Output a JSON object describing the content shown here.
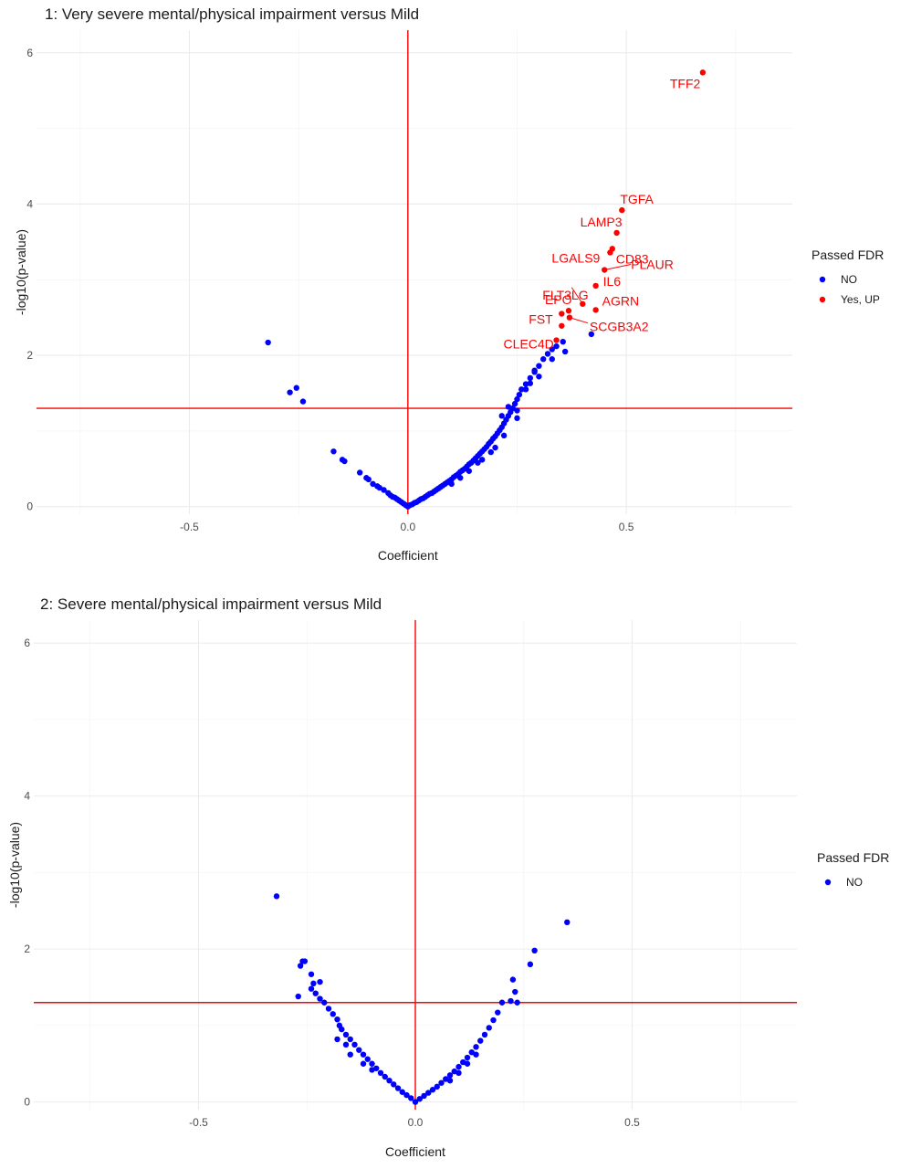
{
  "chart_data": [
    {
      "type": "scatter",
      "title": "1: Very severe mental/physical impairment versus Mild",
      "xlabel": "Coefficient",
      "ylabel": "-log10(p-value)",
      "xticks": [
        -0.5,
        0.0,
        0.5
      ],
      "yticks": [
        0,
        2,
        4,
        6
      ],
      "xlim": [
        -0.85,
        0.88
      ],
      "ylim": [
        -0.1,
        6.3
      ],
      "grid": true,
      "hline": 1.3,
      "vline": 0,
      "legend": {
        "title": "Passed FDR",
        "position": "right",
        "entries": [
          {
            "label": "NO",
            "color": "#0000ff"
          },
          {
            "label": "Yes, UP",
            "color": "#ff0000"
          }
        ]
      },
      "series": [
        {
          "name": "NO",
          "color": "#0000ff",
          "points": [
            [
              -0.32,
              2.17
            ],
            [
              -0.27,
              1.51
            ],
            [
              -0.255,
              1.57
            ],
            [
              -0.24,
              1.39
            ],
            [
              -0.17,
              0.73
            ],
            [
              -0.15,
              0.62
            ],
            [
              -0.145,
              0.6
            ],
            [
              -0.11,
              0.45
            ],
            [
              -0.095,
              0.38
            ],
            [
              -0.09,
              0.36
            ],
            [
              -0.08,
              0.3
            ],
            [
              -0.07,
              0.27
            ],
            [
              -0.065,
              0.25
            ],
            [
              -0.055,
              0.22
            ],
            [
              -0.045,
              0.18
            ],
            [
              -0.04,
              0.15
            ],
            [
              -0.035,
              0.13
            ],
            [
              -0.03,
              0.12
            ],
            [
              -0.025,
              0.1
            ],
            [
              -0.02,
              0.08
            ],
            [
              -0.015,
              0.06
            ],
            [
              -0.01,
              0.04
            ],
            [
              -0.005,
              0.02
            ],
            [
              0.0,
              0.0
            ],
            [
              0.005,
              0.02
            ],
            [
              0.01,
              0.03
            ],
            [
              0.015,
              0.05
            ],
            [
              0.02,
              0.06
            ],
            [
              0.025,
              0.08
            ],
            [
              0.03,
              0.1
            ],
            [
              0.035,
              0.11
            ],
            [
              0.04,
              0.13
            ],
            [
              0.045,
              0.15
            ],
            [
              0.05,
              0.17
            ],
            [
              0.055,
              0.18
            ],
            [
              0.06,
              0.2
            ],
            [
              0.065,
              0.22
            ],
            [
              0.07,
              0.24
            ],
            [
              0.075,
              0.26
            ],
            [
              0.08,
              0.28
            ],
            [
              0.085,
              0.3
            ],
            [
              0.09,
              0.32
            ],
            [
              0.095,
              0.34
            ],
            [
              0.1,
              0.36
            ],
            [
              0.105,
              0.39
            ],
            [
              0.11,
              0.41
            ],
            [
              0.115,
              0.43
            ],
            [
              0.12,
              0.46
            ],
            [
              0.125,
              0.48
            ],
            [
              0.13,
              0.5
            ],
            [
              0.135,
              0.53
            ],
            [
              0.14,
              0.56
            ],
            [
              0.145,
              0.58
            ],
            [
              0.15,
              0.61
            ],
            [
              0.155,
              0.64
            ],
            [
              0.16,
              0.67
            ],
            [
              0.165,
              0.7
            ],
            [
              0.17,
              0.73
            ],
            [
              0.175,
              0.76
            ],
            [
              0.18,
              0.79
            ],
            [
              0.185,
              0.83
            ],
            [
              0.19,
              0.86
            ],
            [
              0.195,
              0.9
            ],
            [
              0.2,
              0.93
            ],
            [
              0.205,
              0.97
            ],
            [
              0.21,
              1.01
            ],
            [
              0.215,
              1.05
            ],
            [
              0.22,
              1.1
            ],
            [
              0.225,
              1.15
            ],
            [
              0.23,
              1.2
            ],
            [
              0.235,
              1.25
            ],
            [
              0.24,
              1.3
            ],
            [
              0.245,
              1.36
            ],
            [
              0.25,
              1.42
            ],
            [
              0.255,
              1.48
            ],
            [
              0.26,
              1.55
            ],
            [
              0.27,
              1.62
            ],
            [
              0.28,
              1.7
            ],
            [
              0.29,
              1.78
            ],
            [
              0.3,
              1.86
            ],
            [
              0.31,
              1.95
            ],
            [
              0.32,
              2.02
            ],
            [
              0.33,
              2.08
            ],
            [
              0.34,
              2.12
            ],
            [
              0.355,
              2.18
            ],
            [
              0.42,
              2.28
            ],
            [
              0.36,
              2.05
            ],
            [
              0.33,
              1.95
            ],
            [
              0.28,
              1.63
            ],
            [
              0.27,
              1.55
            ],
            [
              0.25,
              1.27
            ],
            [
              0.25,
              1.17
            ],
            [
              0.22,
              0.94
            ],
            [
              0.2,
              0.78
            ],
            [
              0.19,
              0.72
            ],
            [
              0.17,
              0.62
            ],
            [
              0.16,
              0.58
            ],
            [
              0.14,
              0.47
            ],
            [
              0.12,
              0.38
            ],
            [
              0.1,
              0.3
            ],
            [
              0.215,
              1.2
            ],
            [
              0.23,
              1.32
            ],
            [
              0.3,
              1.72
            ],
            [
              0.29,
              1.8
            ]
          ]
        },
        {
          "name": "Yes, UP",
          "color": "#ff0000",
          "points": [
            [
              0.675,
              5.74
            ],
            [
              0.49,
              3.92
            ],
            [
              0.478,
              3.62
            ],
            [
              0.468,
              3.41
            ],
            [
              0.463,
              3.36
            ],
            [
              0.45,
              3.13
            ],
            [
              0.43,
              2.92
            ],
            [
              0.4,
              2.68
            ],
            [
              0.43,
              2.6
            ],
            [
              0.368,
              2.59
            ],
            [
              0.352,
              2.55
            ],
            [
              0.37,
              2.5
            ],
            [
              0.352,
              2.39
            ],
            [
              0.34,
              2.2
            ]
          ]
        }
      ],
      "labels": [
        {
          "text": "TFF2",
          "x": 0.675,
          "y": 5.74
        },
        {
          "text": "TGFA",
          "x": 0.49,
          "y": 3.92
        },
        {
          "text": "LAMP3",
          "x": 0.478,
          "y": 3.62
        },
        {
          "text": "CD83",
          "x": 0.468,
          "y": 3.41
        },
        {
          "text": "LGALS9",
          "x": 0.463,
          "y": 3.36
        },
        {
          "text": "PLAUR",
          "x": 0.45,
          "y": 3.13
        },
        {
          "text": "IL6",
          "x": 0.43,
          "y": 2.92
        },
        {
          "text": "FLT3LG",
          "x": 0.4,
          "y": 2.68
        },
        {
          "text": "AGRN",
          "x": 0.43,
          "y": 2.6
        },
        {
          "text": "EPO",
          "x": 0.368,
          "y": 2.59
        },
        {
          "text": "FST",
          "x": 0.352,
          "y": 2.55
        },
        {
          "text": "SCGB3A2",
          "x": 0.37,
          "y": 2.5
        },
        {
          "text": "CLEC4D",
          "x": 0.34,
          "y": 2.2
        }
      ]
    },
    {
      "type": "scatter",
      "title": "2: Severe mental/physical impairment versus Mild",
      "xlabel": "Coefficient",
      "ylabel": "-log10(p-value)",
      "xticks": [
        -0.5,
        0.0,
        0.5
      ],
      "yticks": [
        0,
        2,
        4,
        6
      ],
      "xlim": [
        -0.88,
        0.88
      ],
      "ylim": [
        -0.1,
        6.3
      ],
      "grid": true,
      "hline": 1.3,
      "vline": 0,
      "legend": {
        "title": "Passed FDR",
        "position": "right",
        "entries": [
          {
            "label": "NO",
            "color": "#0000ff"
          }
        ]
      },
      "series": [
        {
          "name": "NO",
          "color": "#0000ff",
          "points": [
            [
              -0.32,
              2.69
            ],
            [
              -0.26,
              1.84
            ],
            [
              -0.255,
              1.84
            ],
            [
              -0.265,
              1.78
            ],
            [
              -0.24,
              1.67
            ],
            [
              -0.22,
              1.57
            ],
            [
              -0.235,
              1.55
            ],
            [
              -0.24,
              1.48
            ],
            [
              -0.27,
              1.38
            ],
            [
              -0.23,
              1.42
            ],
            [
              -0.22,
              1.35
            ],
            [
              -0.21,
              1.3
            ],
            [
              -0.2,
              1.22
            ],
            [
              -0.19,
              1.15
            ],
            [
              -0.18,
              1.08
            ],
            [
              -0.175,
              1.0
            ],
            [
              -0.17,
              0.95
            ],
            [
              -0.16,
              0.88
            ],
            [
              -0.15,
              0.82
            ],
            [
              -0.14,
              0.75
            ],
            [
              -0.13,
              0.68
            ],
            [
              -0.12,
              0.62
            ],
            [
              -0.11,
              0.56
            ],
            [
              -0.1,
              0.5
            ],
            [
              -0.09,
              0.44
            ],
            [
              -0.08,
              0.38
            ],
            [
              -0.07,
              0.33
            ],
            [
              -0.06,
              0.28
            ],
            [
              -0.05,
              0.23
            ],
            [
              -0.04,
              0.18
            ],
            [
              -0.03,
              0.13
            ],
            [
              -0.02,
              0.09
            ],
            [
              -0.01,
              0.05
            ],
            [
              0.0,
              0.0
            ],
            [
              0.01,
              0.04
            ],
            [
              0.02,
              0.08
            ],
            [
              0.03,
              0.12
            ],
            [
              0.04,
              0.16
            ],
            [
              0.05,
              0.2
            ],
            [
              0.06,
              0.25
            ],
            [
              0.07,
              0.3
            ],
            [
              0.08,
              0.35
            ],
            [
              0.09,
              0.4
            ],
            [
              0.1,
              0.46
            ],
            [
              0.11,
              0.52
            ],
            [
              0.12,
              0.58
            ],
            [
              0.13,
              0.65
            ],
            [
              0.14,
              0.72
            ],
            [
              0.15,
              0.8
            ],
            [
              0.16,
              0.88
            ],
            [
              0.17,
              0.97
            ],
            [
              0.18,
              1.07
            ],
            [
              0.19,
              1.17
            ],
            [
              0.2,
              1.3
            ],
            [
              0.22,
              1.32
            ],
            [
              0.225,
              1.6
            ],
            [
              0.23,
              1.44
            ],
            [
              0.235,
              1.3
            ],
            [
              0.265,
              1.8
            ],
            [
              0.275,
              1.98
            ],
            [
              0.35,
              2.35
            ],
            [
              -0.15,
              0.62
            ],
            [
              -0.12,
              0.5
            ],
            [
              -0.1,
              0.42
            ],
            [
              0.08,
              0.28
            ],
            [
              0.1,
              0.38
            ],
            [
              0.12,
              0.5
            ],
            [
              0.14,
              0.62
            ],
            [
              -0.18,
              0.82
            ],
            [
              -0.16,
              0.75
            ]
          ]
        }
      ],
      "labels": []
    }
  ]
}
